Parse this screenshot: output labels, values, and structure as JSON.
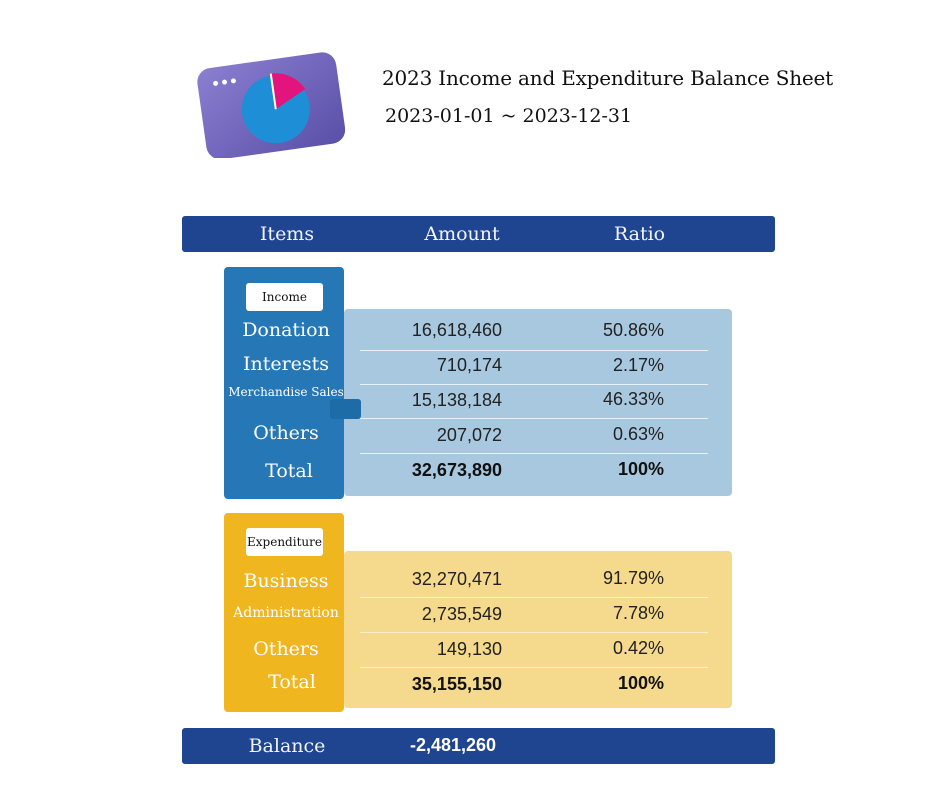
{
  "header": {
    "title": "2023 Income and Expenditure Balance Sheet",
    "period": "2023-01-01 ~ 2023-12-31",
    "logo_icon": "pie-chart-window-icon"
  },
  "columns": {
    "items": "Items",
    "amount": "Amount",
    "ratio": "Ratio"
  },
  "income": {
    "badge": "Income",
    "rows": [
      {
        "label": "Donation",
        "amount": "16,618,460",
        "ratio": "50.86%"
      },
      {
        "label": "Interests",
        "amount": "710,174",
        "ratio": "2.17%"
      },
      {
        "label": "Merchandise Sales",
        "amount": "15,138,184",
        "ratio": "46.33%"
      },
      {
        "label": "Others",
        "amount": "207,072",
        "ratio": "0.63%"
      }
    ],
    "total": {
      "label": "Total",
      "amount": "32,673,890",
      "ratio": "100%"
    }
  },
  "expenditure": {
    "badge": "Expenditure",
    "rows": [
      {
        "label": "Business",
        "amount": "32,270,471",
        "ratio": "91.79%"
      },
      {
        "label": "Administration",
        "amount": "2,735,549",
        "ratio": "7.78%"
      },
      {
        "label": "Others",
        "amount": "149,130",
        "ratio": "0.42%"
      }
    ],
    "total": {
      "label": "Total",
      "amount": "35,155,150",
      "ratio": "100%"
    }
  },
  "balance": {
    "label": "Balance",
    "amount": "-2,481,260"
  },
  "colors": {
    "header_band": "#1f4490",
    "income_side": "#2577b5",
    "income_panel": "#a8c8e0",
    "expenditure_side": "#efb61f",
    "expenditure_panel": "#f5d98c"
  }
}
